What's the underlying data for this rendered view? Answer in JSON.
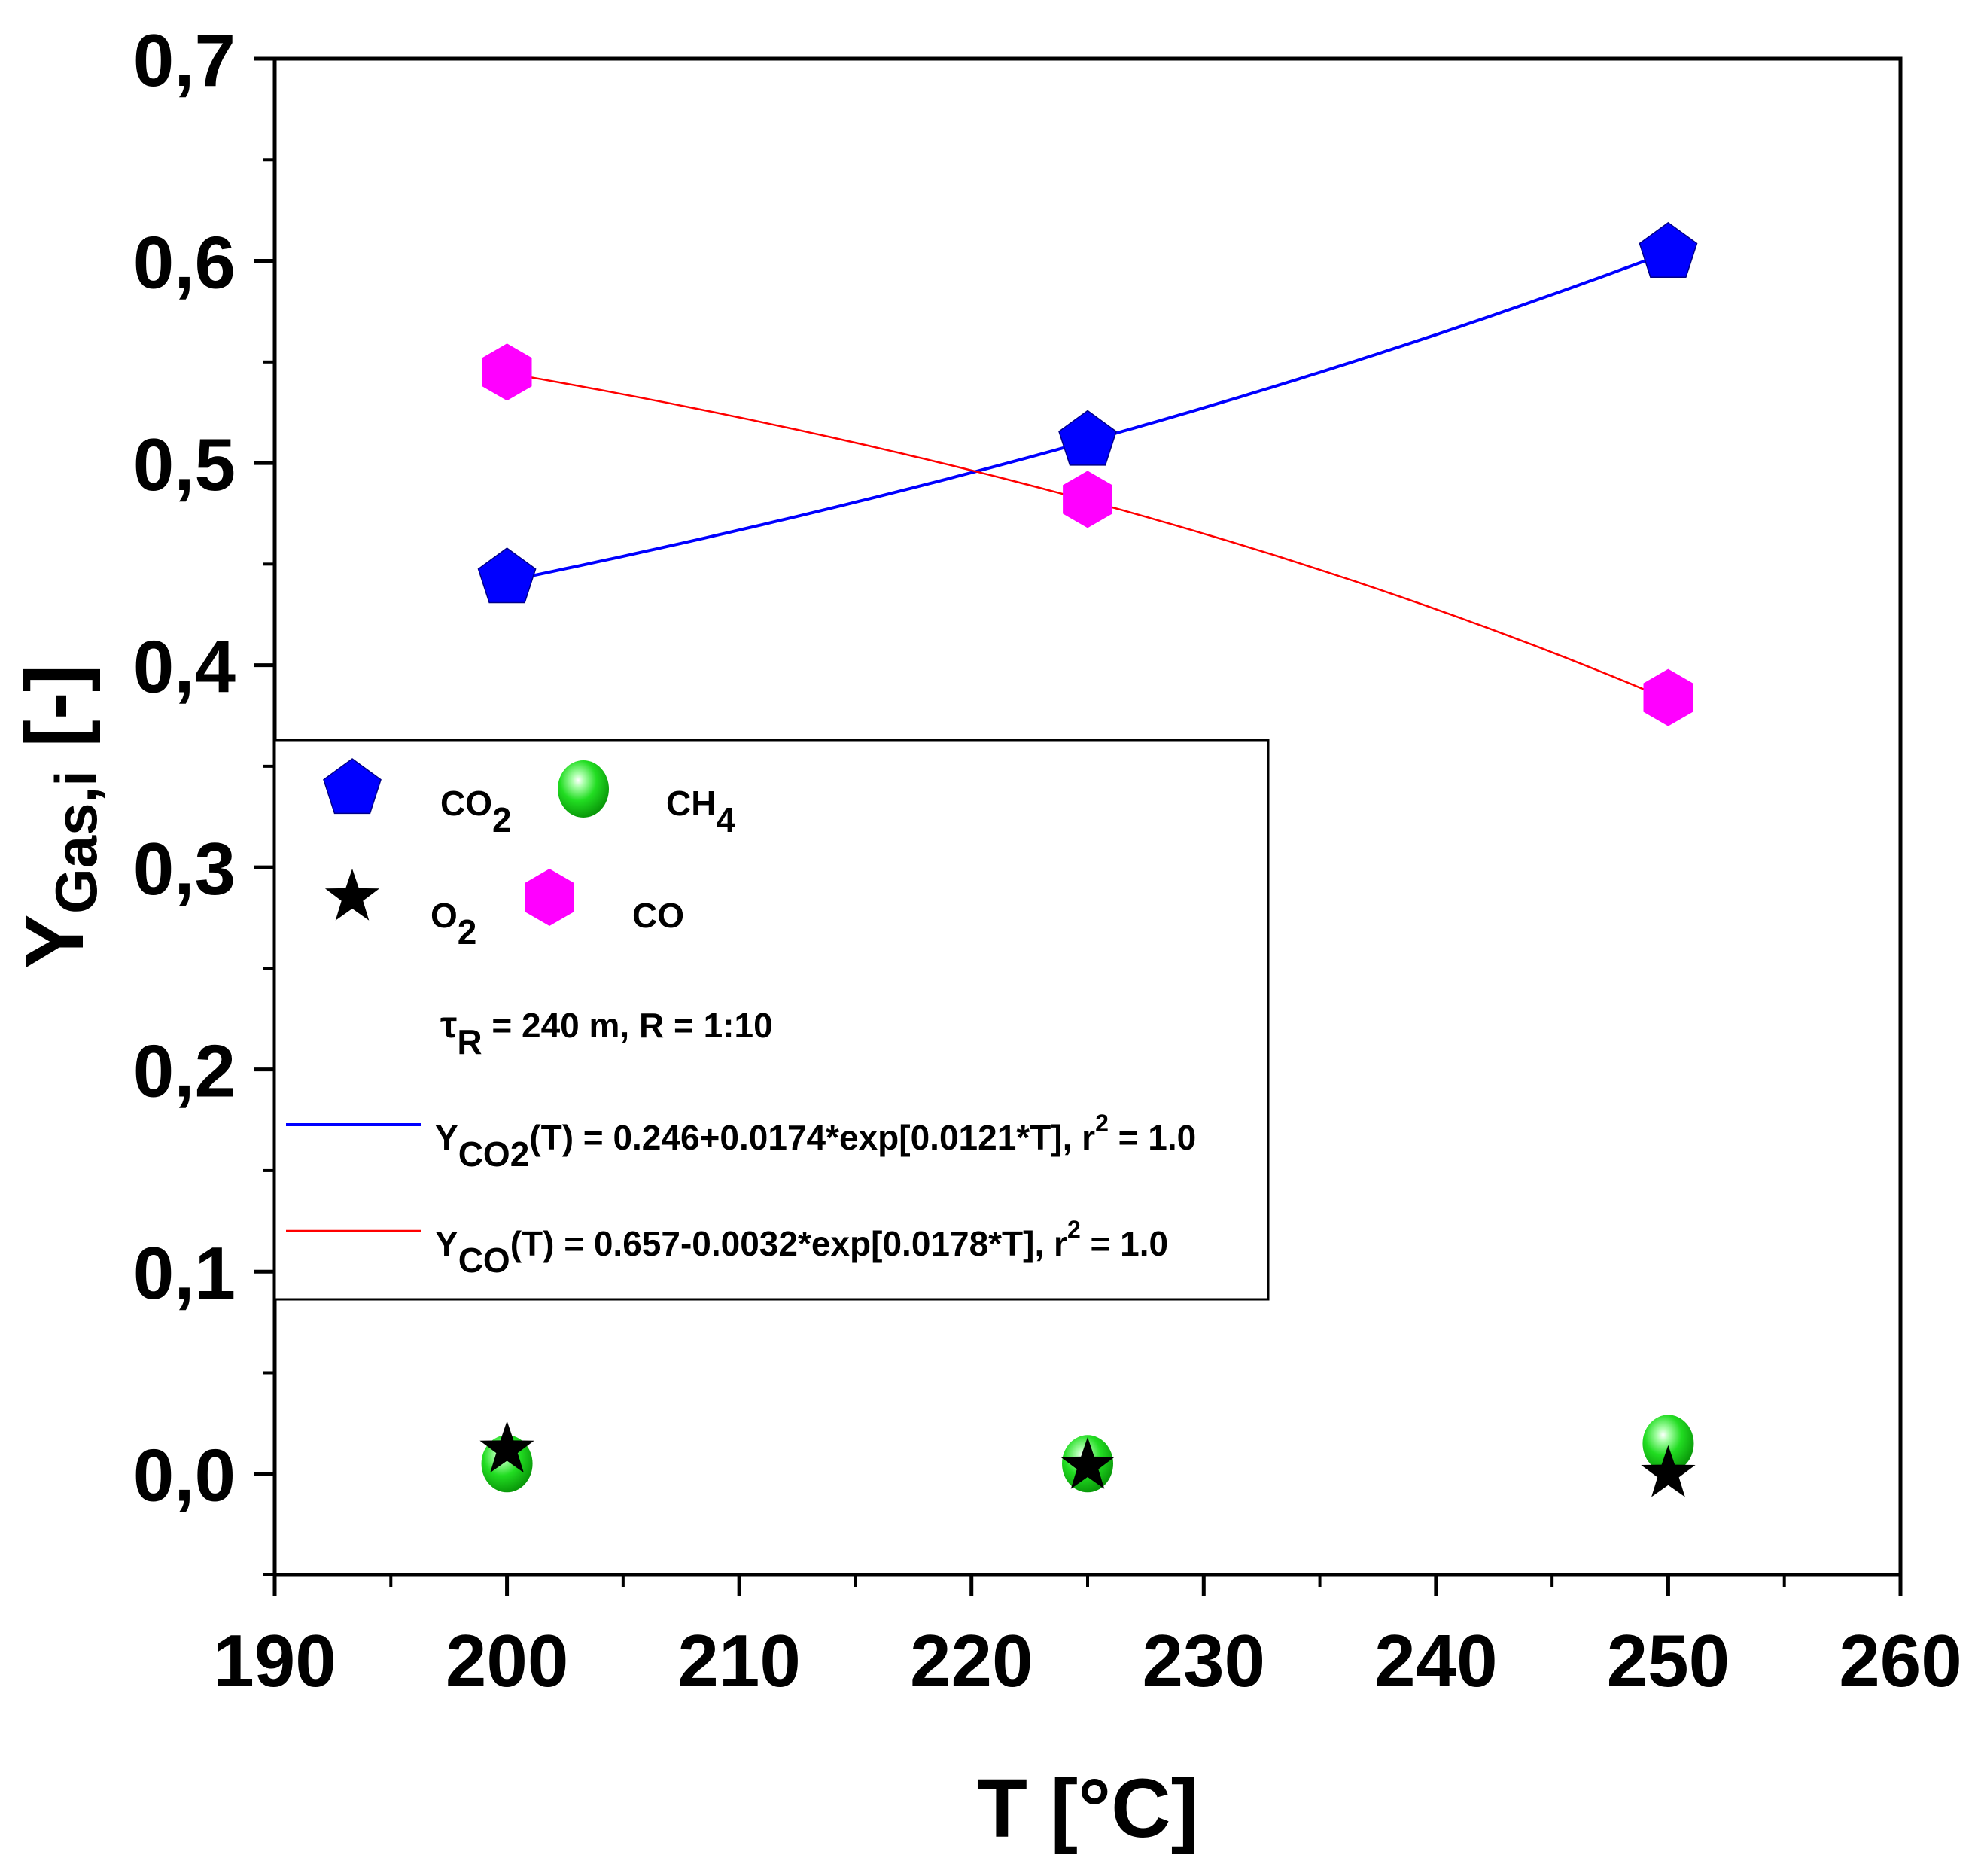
{
  "chart_data": {
    "type": "scatter",
    "title": "",
    "xlabel": "T [°C]",
    "ylabel": "Y",
    "ylabel_sub": "Gas,i",
    "ylabel_suffix": " [-]",
    "xlim": [
      190,
      260
    ],
    "ylim": [
      -0.05,
      0.7
    ],
    "x_ticks": [
      190,
      200,
      210,
      220,
      230,
      240,
      250,
      260
    ],
    "x_tick_labels": [
      "190",
      "200",
      "210",
      "220",
      "230",
      "240",
      "250",
      "260"
    ],
    "y_ticks": [
      0.0,
      0.1,
      0.2,
      0.3,
      0.4,
      0.5,
      0.6,
      0.7
    ],
    "y_tick_labels": [
      "0,0",
      "0,1",
      "0,2",
      "0,3",
      "0,4",
      "0,5",
      "0,6",
      "0,7"
    ],
    "grid": false,
    "legend_position": "center-left",
    "series": [
      {
        "name": "CO2",
        "label_main": "CO",
        "label_sub": "2",
        "marker": "pentagon",
        "color": "#0000ff",
        "x": [
          200,
          225,
          250
        ],
        "y": [
          0.443,
          0.511,
          0.604
        ]
      },
      {
        "name": "CH4",
        "label_main": "CH",
        "label_sub": "4",
        "marker": "sphere",
        "color": "#22dd22",
        "x": [
          200,
          225,
          250
        ],
        "y": [
          0.005,
          0.005,
          0.015
        ]
      },
      {
        "name": "O2",
        "label_main": "O",
        "label_sub": "2",
        "marker": "star",
        "color": "#000000",
        "x": [
          200,
          225,
          250
        ],
        "y": [
          0.012,
          0.004,
          0.0
        ]
      },
      {
        "name": "CO",
        "label_main": "CO",
        "label_sub": "",
        "marker": "hexagon",
        "color": "#ff00ff",
        "x": [
          200,
          225,
          250
        ],
        "y": [
          0.545,
          0.482,
          0.384
        ]
      }
    ],
    "fits": [
      {
        "name": "CO2 fit",
        "color": "#0000ff",
        "a": 0.246,
        "b": 0.0174,
        "c": 0.0121,
        "sign": 1,
        "x_range": [
          200,
          250
        ],
        "label_y": "Y",
        "label_sub": "CO2",
        "label_rest": "(T) = 0.246+0.0174*exp[0.0121*T], r",
        "label_sup": "2",
        "label_end": " = 1.0"
      },
      {
        "name": "CO fit",
        "color": "#ff0000",
        "a": 0.657,
        "b": 0.0032,
        "c": 0.0178,
        "sign": -1,
        "x_range": [
          200,
          250
        ],
        "label_y": "Y",
        "label_sub": "CO",
        "label_rest": "(T) = 0.657-0.0032*exp[0.0178*T], r",
        "label_sup": "2",
        "label_end": " = 1.0"
      }
    ],
    "annotation": {
      "tau": "τ",
      "tau_sub": "R",
      "text": " = 240 m, R = 1:10"
    }
  }
}
